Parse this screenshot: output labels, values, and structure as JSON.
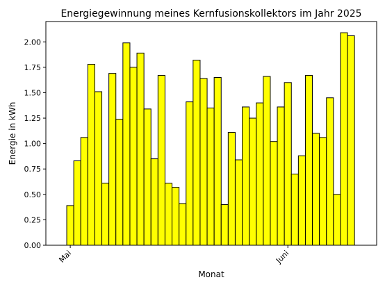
{
  "chart_data": {
    "type": "bar",
    "title": "Energiegewinnung meines Kernfusionskollektors im Jahr 2025",
    "xlabel": "Monat",
    "ylabel": "Energie in kWh",
    "ylim": [
      0,
      2.2
    ],
    "yticks": [
      0.0,
      0.25,
      0.5,
      0.75,
      1.0,
      1.25,
      1.5,
      1.75,
      2.0
    ],
    "ytick_labels": [
      "0.00",
      "0.25",
      "0.50",
      "0.75",
      "1.00",
      "1.25",
      "1.50",
      "1.75",
      "2.00"
    ],
    "xticks": [
      {
        "label": "Mai",
        "date": "2025-05-01"
      },
      {
        "label": "Juni",
        "date": "2025-06-01"
      }
    ],
    "x_start_date": "2025-04-30",
    "bar_color": "#ffff00",
    "edge_color": "#000000",
    "grid": false,
    "values": [
      0.0,
      0.39,
      0.83,
      1.06,
      1.78,
      1.51,
      0.61,
      1.69,
      1.24,
      1.99,
      1.75,
      1.89,
      1.34,
      0.85,
      1.67,
      0.61,
      0.57,
      0.41,
      1.41,
      1.82,
      1.64,
      1.35,
      1.65,
      0.4,
      1.11,
      0.84,
      1.36,
      1.25,
      1.4,
      1.66,
      1.02,
      1.36,
      1.6,
      0.7,
      0.88,
      1.67,
      1.1,
      1.06,
      1.45,
      0.5,
      2.09,
      2.06
    ]
  }
}
